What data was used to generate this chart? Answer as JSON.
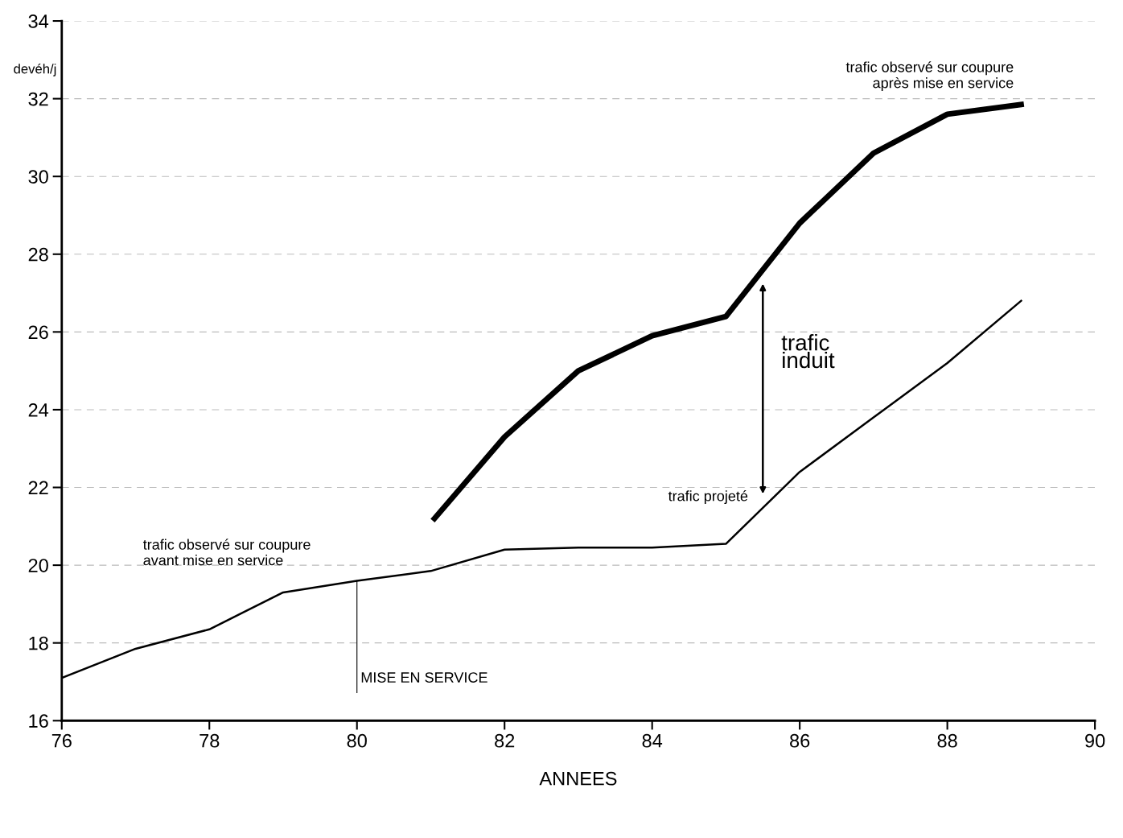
{
  "chart_data": {
    "type": "line",
    "ylabel": "devéh/j",
    "xlabel": "ANNEES",
    "xlim": [
      76,
      90
    ],
    "xticks": [
      76,
      78,
      80,
      82,
      84,
      86,
      88,
      90
    ],
    "ylim": [
      16,
      34
    ],
    "yticks": [
      16,
      18,
      20,
      22,
      24,
      26,
      28,
      30,
      32,
      34
    ],
    "grid": "y",
    "legend": false,
    "line_style": "solid",
    "marker": "none",
    "series": [
      {
        "color": "#000000",
        "x": [
          76,
          77,
          78,
          79,
          80,
          81,
          82,
          83,
          84,
          85,
          86,
          87,
          88,
          89
        ],
        "values": [
          17.1,
          17.85,
          18.35,
          19.3,
          19.6,
          19.85,
          20.4,
          20.45,
          20.45,
          20.55,
          22.4,
          23.8,
          25.2,
          26.8
        ]
      },
      {
        "name": "trafic observé sur coupure\naprès mise en service",
        "color": "#000000",
        "x": [
          81.05,
          82,
          83,
          84,
          85,
          86,
          87,
          88,
          89
        ],
        "values": [
          21.2,
          23.3,
          25.0,
          25.9,
          26.4,
          28.8,
          30.6,
          31.6,
          31.85
        ]
      }
    ],
    "ref_lines": [
      {
        "axis": "x",
        "value": 80,
        "label": "MISE EN SERVICE"
      }
    ],
    "annotations": [
      "trafic observé sur coupure\navant mise en service",
      "trafic projeté",
      "trafic\ninduit"
    ]
  }
}
